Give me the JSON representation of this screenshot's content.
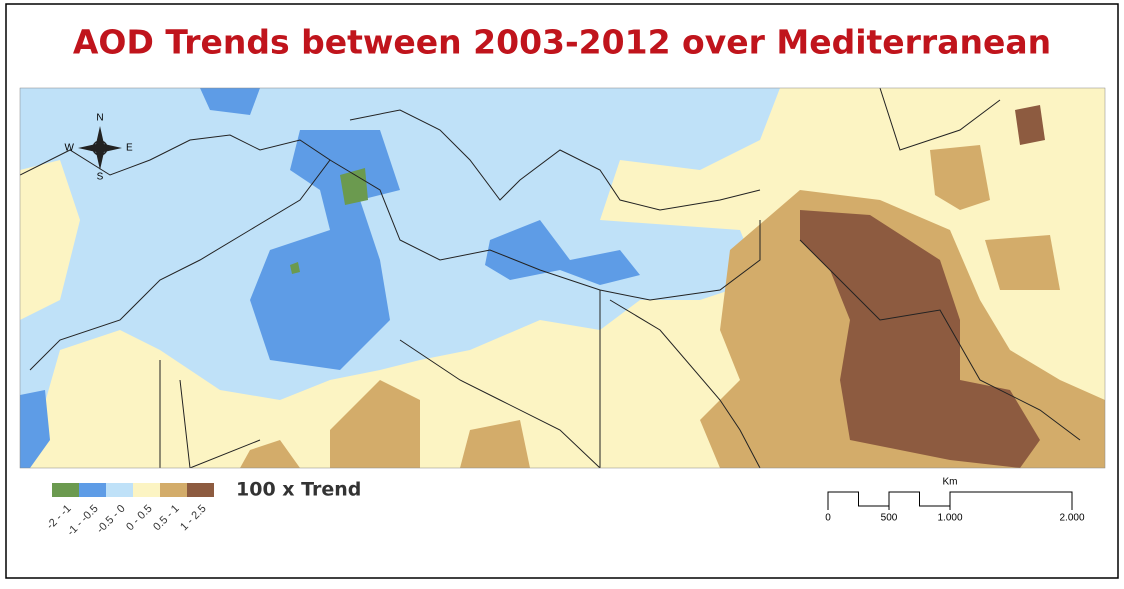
{
  "title": "AOD Trends between 2003-2012 over Mediterranean",
  "compass": {
    "north": "N",
    "south": "S",
    "east": "E",
    "west": "W"
  },
  "legend": {
    "caption": "100 x Trend",
    "classes": [
      {
        "label": "-2 - -1",
        "color": "#6b9a4f"
      },
      {
        "label": "-1 - -0.5",
        "color": "#5e9ce6"
      },
      {
        "label": "-0.5 - 0",
        "color": "#bfe1f8"
      },
      {
        "label": "0 - 0.5",
        "color": "#fcf4c3"
      },
      {
        "label": "0.5 - 1",
        "color": "#d3ac6a"
      },
      {
        "label": "1 - 2.5",
        "color": "#8d5b40"
      }
    ]
  },
  "scale_bar": {
    "unit": "Km",
    "max": 2000,
    "ticks": [
      0,
      500,
      {
        "value": 1000,
        "label": "1.000"
      },
      {
        "value": 2000,
        "label": "2.000"
      }
    ]
  }
}
